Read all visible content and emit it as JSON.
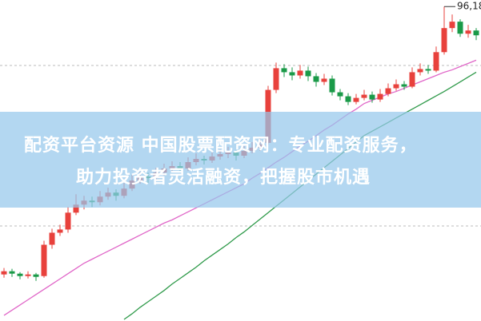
{
  "chart_data": {
    "type": "candlestick",
    "ylim": [
      57,
      97
    ],
    "yticks": [
      68.84,
      88.84
    ],
    "grid": true,
    "up_color": "#e8413c",
    "down_color": "#1a9a48",
    "open": [
      62.8,
      63.2,
      62.9,
      62.6,
      62.8,
      62.6,
      66.5,
      68.0,
      68.4,
      70.5,
      71.5,
      72.0,
      71.8,
      72.5,
      73.0,
      72.6,
      73.5,
      74.5,
      75.0,
      74.8,
      75.5,
      76.0,
      76.3,
      76.0,
      76.8,
      77.2,
      77.0,
      77.5,
      77.8,
      78.0,
      77.6,
      78.2,
      78.6,
      79.2,
      85.8,
      88.5,
      88.0,
      87.6,
      88.2,
      87.5,
      86.8,
      87.2,
      85.5,
      85.0,
      84.3,
      84.8,
      85.2,
      84.6,
      85.3,
      86.0,
      86.5,
      86.2,
      88.0,
      88.4,
      88.2,
      90.5,
      93.5,
      94.3,
      92.8,
      93.2
    ],
    "high": [
      63.6,
      63.5,
      63.1,
      63.2,
      63.0,
      67.0,
      68.5,
      69.0,
      71.2,
      72.8,
      72.6,
      72.5,
      73.2,
      73.6,
      73.4,
      74.2,
      75.2,
      75.6,
      75.5,
      76.1,
      76.6,
      76.9,
      76.8,
      77.4,
      77.9,
      77.6,
      78.1,
      78.4,
      78.7,
      78.3,
      78.8,
      79.3,
      79.8,
      86.3,
      89.2,
      89.0,
      88.6,
      88.9,
      88.7,
      87.9,
      87.8,
      87.6,
      85.9,
      85.4,
      85.3,
      85.8,
      85.6,
      85.9,
      86.6,
      87.1,
      86.9,
      88.6,
      89.1,
      88.9,
      91.2,
      96.18,
      95.2,
      94.6,
      93.9,
      93.5
    ],
    "low": [
      62.4,
      62.5,
      62.2,
      62.3,
      62.0,
      62.4,
      66.0,
      67.6,
      68.0,
      70.2,
      70.9,
      71.2,
      71.4,
      72.1,
      72.0,
      72.3,
      73.2,
      74.1,
      74.2,
      74.5,
      75.1,
      75.6,
      75.5,
      75.7,
      76.4,
      76.5,
      76.7,
      77.1,
      77.3,
      77.0,
      77.3,
      77.9,
      78.2,
      79.0,
      85.4,
      87.4,
      87.0,
      87.2,
      86.9,
      86.2,
      86.4,
      85.1,
      84.5,
      83.9,
      84.0,
      84.5,
      84.2,
      84.3,
      85.0,
      85.7,
      85.8,
      86.0,
      87.6,
      87.8,
      88.0,
      90.2,
      93.0,
      92.4,
      92.3,
      92.0
    ],
    "close": [
      63.2,
      62.9,
      62.6,
      62.8,
      62.5,
      66.5,
      68.0,
      68.4,
      70.5,
      71.5,
      72.0,
      71.8,
      72.5,
      73.0,
      72.6,
      73.5,
      74.5,
      75.0,
      74.8,
      75.5,
      76.0,
      76.3,
      76.0,
      76.8,
      77.2,
      77.0,
      77.5,
      77.8,
      78.0,
      77.6,
      78.2,
      78.6,
      79.0,
      85.8,
      88.5,
      88.0,
      87.6,
      88.2,
      87.5,
      86.8,
      87.2,
      85.5,
      85.0,
      84.3,
      84.8,
      85.2,
      84.6,
      85.3,
      86.0,
      86.5,
      86.2,
      88.0,
      88.4,
      88.2,
      90.5,
      93.5,
      94.3,
      92.8,
      93.2,
      92.6
    ],
    "lines": [
      {
        "color": "#e066c8",
        "values": [
          57.7,
          58.35,
          59.0,
          59.65,
          60.3,
          60.95,
          61.6,
          62.25,
          62.9,
          63.55,
          64.2,
          64.7,
          65.2,
          65.7,
          66.2,
          66.7,
          67.2,
          67.7,
          68.2,
          68.7,
          69.2,
          69.6,
          70.1,
          70.6,
          71.1,
          71.6,
          72.1,
          72.6,
          73.1,
          73.6,
          74.1,
          74.8,
          75.4,
          76.1,
          76.8,
          77.4,
          78.1,
          78.8,
          79.4,
          80.1,
          80.8,
          81.4,
          82.1,
          82.8,
          83.4,
          84.1,
          84.5,
          84.9,
          85.3,
          85.6,
          86.0,
          86.4,
          86.8,
          87.2,
          87.6,
          88.0,
          88.3,
          88.7,
          89.1,
          89.5
        ]
      },
      {
        "color": "#2f9a4a",
        "values": [
          null,
          null,
          null,
          null,
          null,
          null,
          null,
          null,
          null,
          null,
          null,
          null,
          null,
          null,
          null,
          57.2,
          57.9,
          58.7,
          59.4,
          60.1,
          60.8,
          61.6,
          62.3,
          63.0,
          63.7,
          64.5,
          65.2,
          65.9,
          66.6,
          67.4,
          68.1,
          68.9,
          69.7,
          70.5,
          71.3,
          72.1,
          72.9,
          73.7,
          74.5,
          75.3,
          76.1,
          76.9,
          77.7,
          78.5,
          79.3,
          80.1,
          80.65,
          81.2,
          81.75,
          82.3,
          82.85,
          83.4,
          83.95,
          84.5,
          85.05,
          85.6,
          86.2,
          86.8,
          87.4,
          88.0
        ]
      }
    ],
    "high_label": {
      "value": 96.18,
      "label": "96,18"
    }
  },
  "banner": {
    "lines": [
      "配资平台资源 中国股票配资网：专业配资服务，",
      "助力投资者灵活融资，把握股市机遇"
    ]
  }
}
